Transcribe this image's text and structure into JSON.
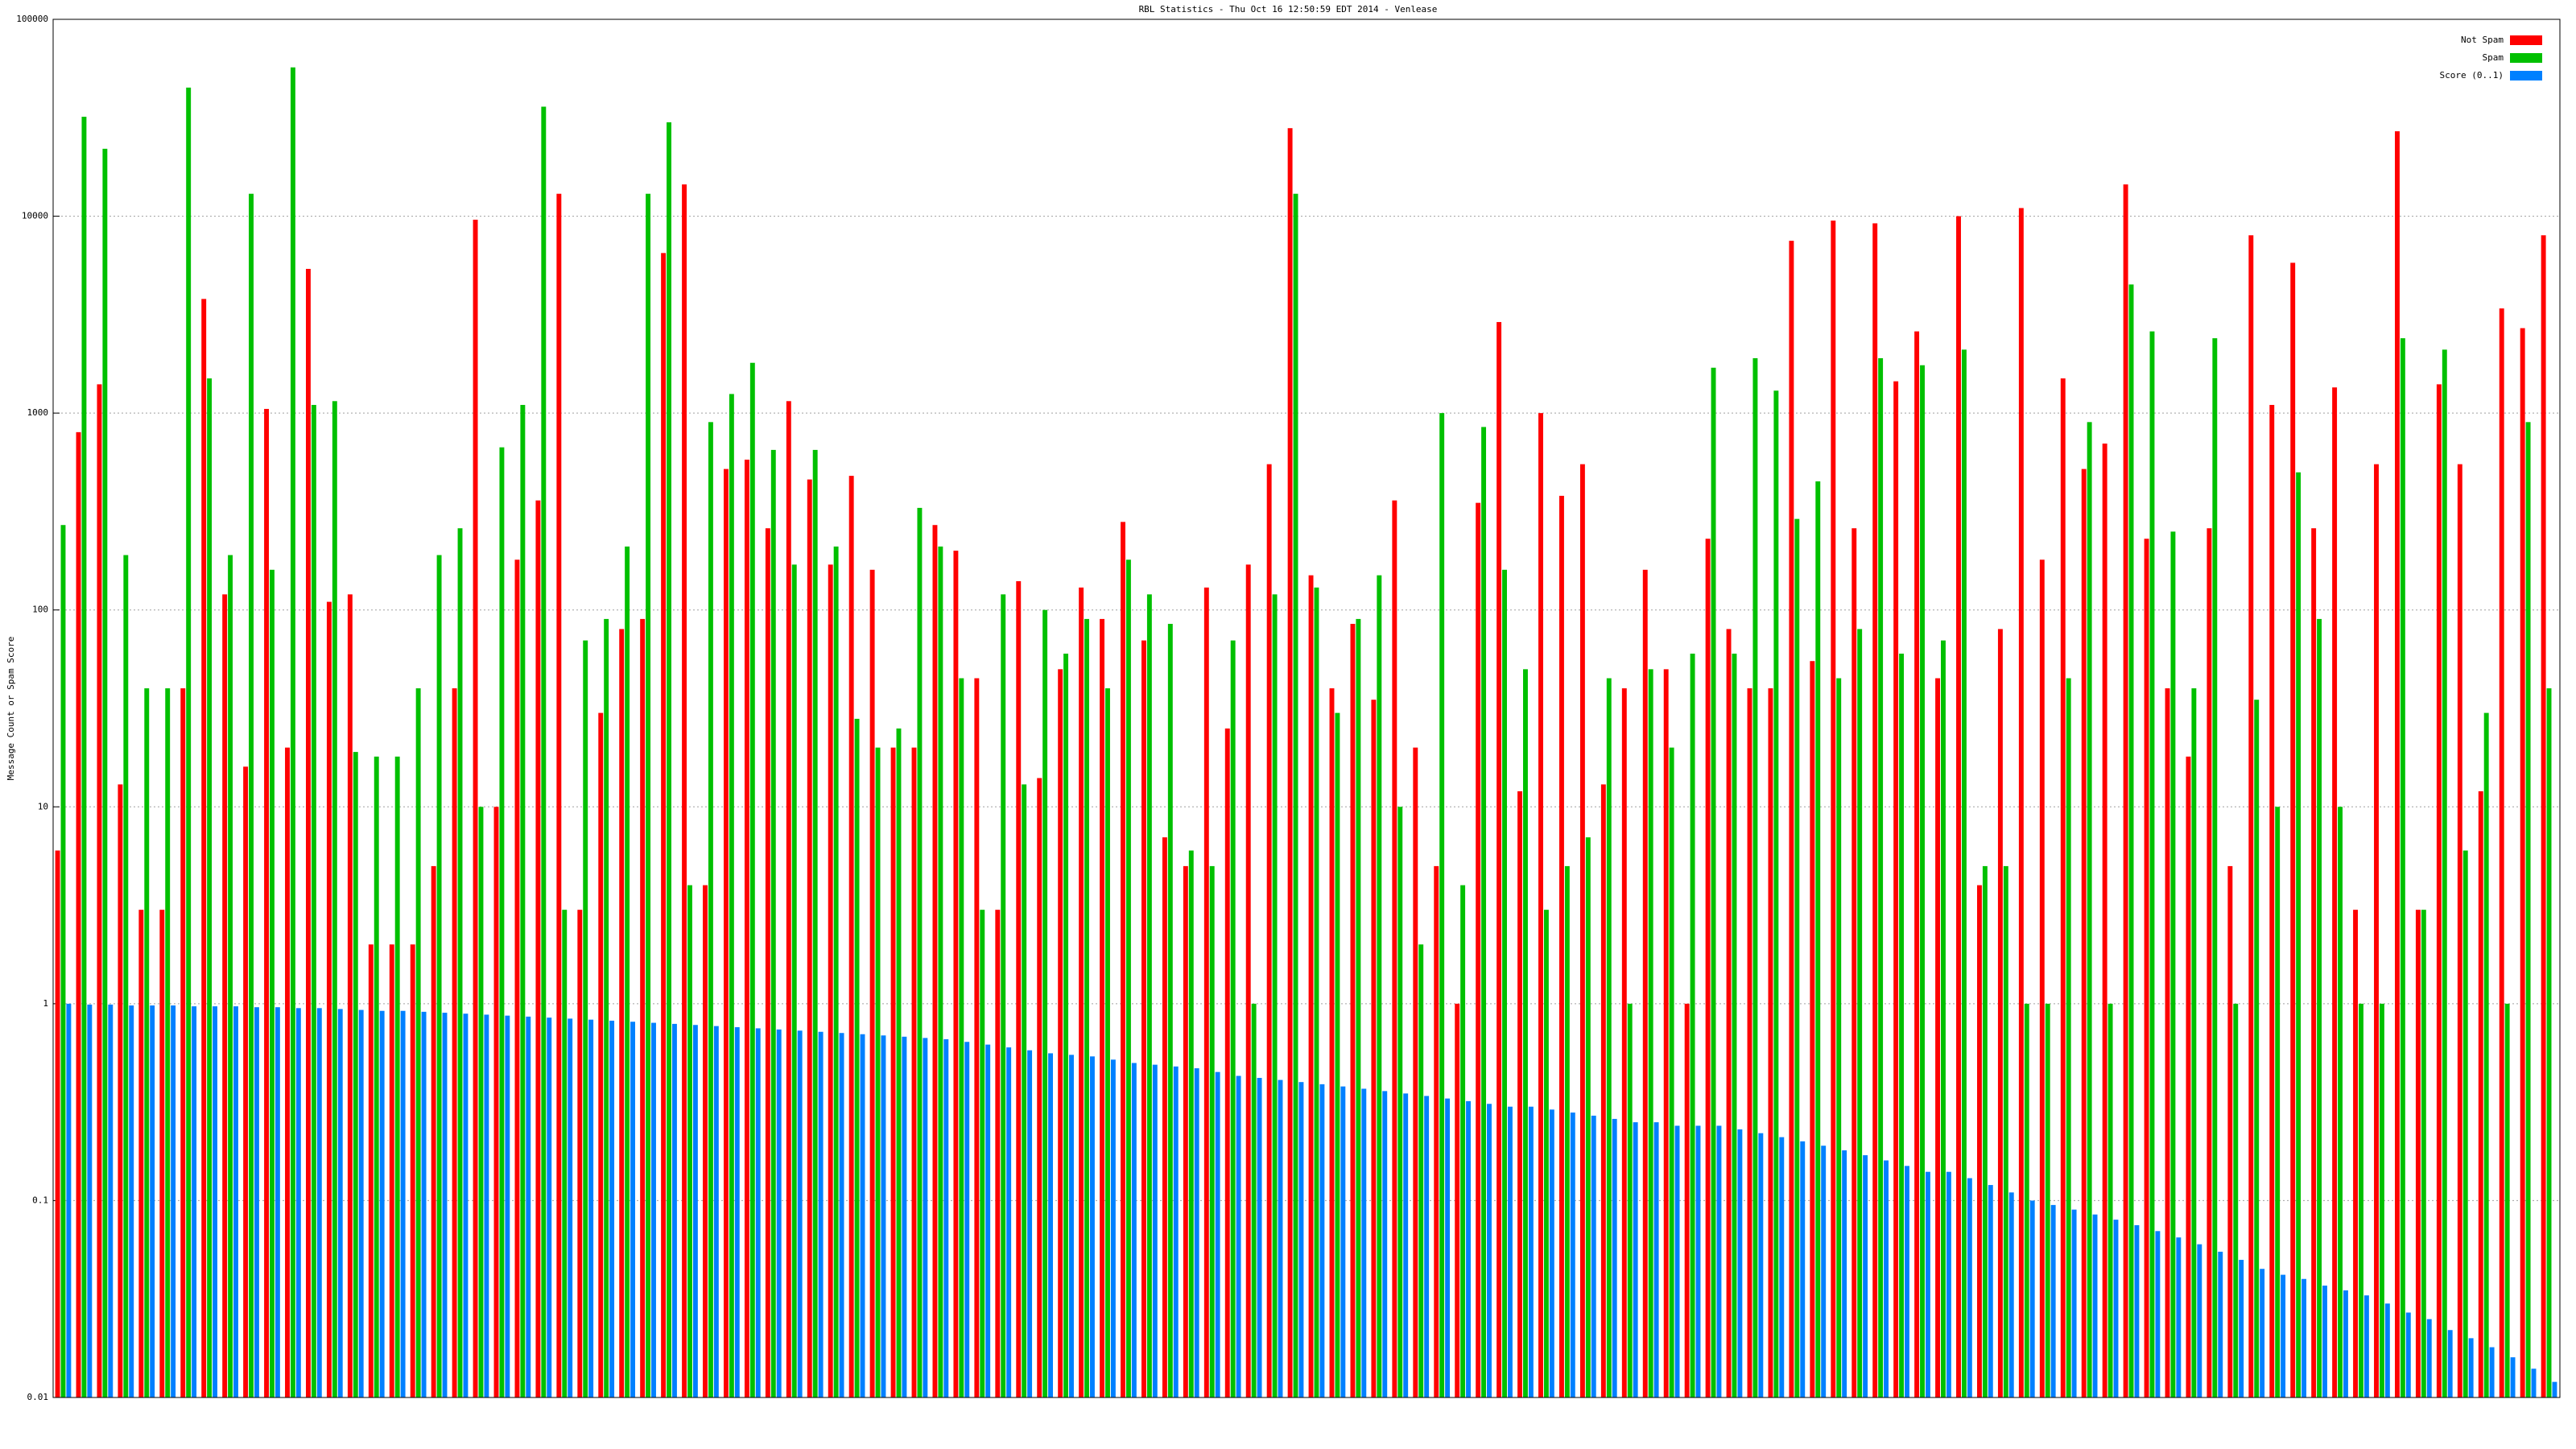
{
  "chart_data": {
    "type": "bar",
    "title": "RBL Statistics - Thu Oct 16 12:50:59 EDT 2014 - Venlease",
    "y_label": "Message Count or Spam Score",
    "log_scale": true,
    "grid": true,
    "legend": "top-right",
    "ylim": [
      0.01,
      100000
    ],
    "yticks": [
      0.01,
      0.1,
      1,
      10,
      100,
      1000,
      10000,
      100000
    ],
    "series": [
      {
        "name": "Not Spam",
        "color": "#ff0000",
        "values": [
          6,
          800,
          1400,
          13,
          3,
          3,
          40,
          3800,
          120,
          16,
          1050,
          20,
          5400,
          110,
          120,
          2,
          2,
          2,
          5,
          40,
          9600,
          10,
          180,
          360,
          13000,
          3,
          30,
          80,
          90,
          6500,
          14500,
          4,
          520,
          580,
          260,
          1150,
          460,
          170,
          480,
          160,
          20,
          20,
          270,
          200,
          45,
          3,
          140,
          14,
          50,
          130,
          90,
          280,
          70,
          7,
          5,
          130,
          25,
          170,
          550,
          28000,
          150,
          40,
          85,
          35,
          360,
          20,
          5,
          1,
          350,
          2900,
          12,
          1000,
          380,
          550,
          13,
          40,
          160,
          50,
          1,
          230,
          80,
          40,
          40,
          7500,
          55,
          9500,
          260,
          9200,
          1450,
          2600,
          45,
          10000,
          4,
          80,
          11000,
          180,
          1500,
          520,
          700,
          14500,
          230,
          40,
          18,
          260,
          5,
          8000,
          1100,
          5800,
          260,
          1350,
          3,
          550,
          27000,
          3,
          1400,
          550,
          12,
          3400,
          2700,
          8000
        ]
      },
      {
        "name": "Spam",
        "color": "#00c000",
        "values": [
          270,
          32000,
          22000,
          190,
          40,
          40,
          45000,
          1500,
          190,
          13000,
          160,
          57000,
          1100,
          1150,
          19,
          18,
          18,
          40,
          190,
          260,
          10,
          670,
          1100,
          36000,
          3,
          70,
          90,
          210,
          13000,
          30000,
          4,
          900,
          1250,
          1800,
          650,
          170,
          650,
          210,
          28,
          20,
          25,
          330,
          210,
          45,
          3,
          120,
          13,
          100,
          60,
          90,
          40,
          180,
          120,
          85,
          6,
          5,
          70,
          1,
          120,
          13000,
          130,
          30,
          90,
          150,
          10,
          2,
          1000,
          4,
          850,
          160,
          50,
          3,
          5,
          7,
          45,
          1,
          50,
          20,
          60,
          1700,
          60,
          1900,
          1300,
          290,
          450,
          45,
          80,
          1900,
          60,
          1750,
          70,
          2100,
          5,
          5,
          1,
          1,
          45,
          900,
          1,
          4500,
          2600,
          250,
          40,
          2400,
          1,
          35,
          10,
          500,
          90,
          10,
          1,
          1,
          2400,
          3,
          2100,
          6,
          30,
          1,
          900,
          40
        ]
      },
      {
        "name": "Score (0..1)",
        "color": "#0080ff",
        "values": [
          1,
          0.99,
          0.99,
          0.98,
          0.98,
          0.98,
          0.97,
          0.97,
          0.97,
          0.96,
          0.96,
          0.95,
          0.95,
          0.94,
          0.93,
          0.92,
          0.92,
          0.91,
          0.9,
          0.89,
          0.88,
          0.87,
          0.86,
          0.85,
          0.84,
          0.83,
          0.82,
          0.81,
          0.8,
          0.79,
          0.78,
          0.77,
          0.76,
          0.75,
          0.74,
          0.73,
          0.72,
          0.71,
          0.7,
          0.69,
          0.68,
          0.67,
          0.66,
          0.64,
          0.62,
          0.6,
          0.58,
          0.56,
          0.55,
          0.54,
          0.52,
          0.5,
          0.49,
          0.48,
          0.47,
          0.45,
          0.43,
          0.42,
          0.41,
          0.4,
          0.39,
          0.38,
          0.37,
          0.36,
          0.35,
          0.34,
          0.33,
          0.32,
          0.31,
          0.3,
          0.3,
          0.29,
          0.28,
          0.27,
          0.26,
          0.25,
          0.25,
          0.24,
          0.24,
          0.24,
          0.23,
          0.22,
          0.21,
          0.2,
          0.19,
          0.18,
          0.17,
          0.16,
          0.15,
          0.14,
          0.14,
          0.13,
          0.12,
          0.11,
          0.1,
          0.095,
          0.09,
          0.085,
          0.08,
          0.075,
          0.07,
          0.065,
          0.06,
          0.055,
          0.05,
          0.045,
          0.042,
          0.04,
          0.037,
          0.035,
          0.033,
          0.03,
          0.027,
          0.025,
          0.022,
          0.02,
          0.018,
          0.016,
          0.014,
          0.012
        ]
      }
    ]
  }
}
